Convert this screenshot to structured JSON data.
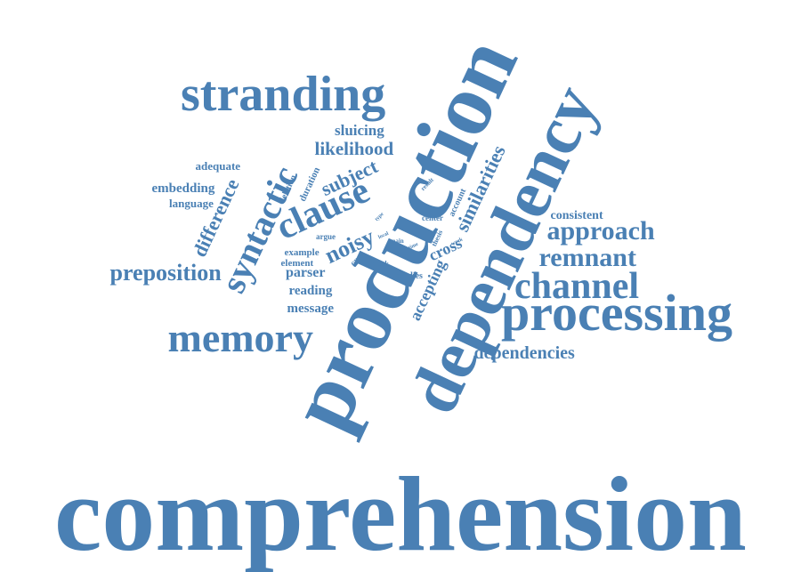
{
  "color": "#4a80b4",
  "words": [
    "comprehension",
    "production",
    "dependency",
    "processing",
    "stranding",
    "memory",
    "channel",
    "syntactic",
    "clause",
    "remnant",
    "approach",
    "preposition",
    "dependencies",
    "similarities",
    "difference",
    "subject",
    "likelihood",
    "noisy",
    "sluicing",
    "accepting",
    "cross",
    "embedding",
    "language",
    "adequate",
    "message",
    "reading",
    "parser",
    "element",
    "example",
    "consistent",
    "studies",
    "duration",
    "deletion",
    "argue",
    "filler",
    "account",
    "center",
    "thesis",
    "result",
    "local",
    "main",
    "time",
    "work",
    "type",
    "break"
  ]
}
